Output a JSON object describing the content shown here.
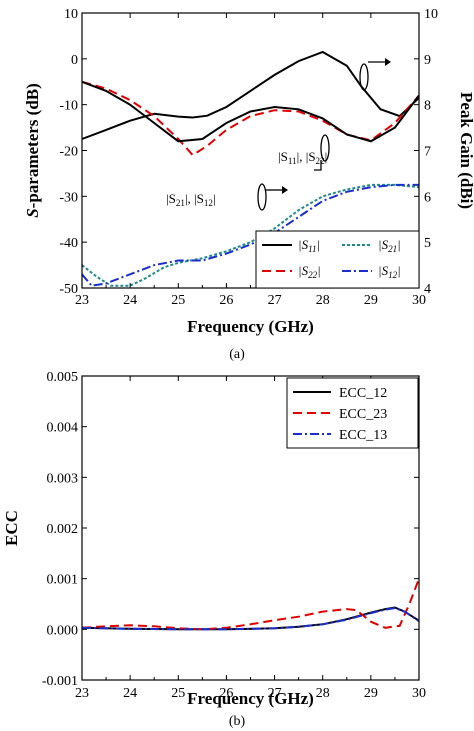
{
  "chart_data": [
    {
      "type": "line",
      "panel_label": "(a)",
      "xlabel": "Frequency (GHz)",
      "ylabel": "S-parameters (dB)",
      "ylabel_parts": [
        "S",
        "-parameters (dB)"
      ],
      "y2label": "Peak Gain (dBi)",
      "xlim": [
        23,
        30
      ],
      "ylim": [
        -50,
        10
      ],
      "y2lim": [
        4,
        10
      ],
      "x_ticks": [
        "23",
        "24",
        "25",
        "26",
        "27",
        "28",
        "29",
        "30"
      ],
      "y_ticks": [
        "-50",
        "-40",
        "-30",
        "-20",
        "-10",
        "0",
        "10"
      ],
      "y2_ticks": [
        "4",
        "5",
        "6",
        "7",
        "8",
        "9",
        "10"
      ],
      "grid": false,
      "legend_position": "bottom-right",
      "annotations": {
        "s11_s22": {
          "base": "|S",
          "sub1": "11",
          "mid": "|, |S",
          "sub2": "22",
          "end": "|"
        },
        "s21_s12": {
          "base": "|S",
          "sub1": "21",
          "mid": "|, |S",
          "sub2": "12",
          "end": "|"
        }
      },
      "series": [
        {
          "name": "|S11|",
          "legend_base": "|S",
          "legend_sub": "11",
          "legend_end": "|",
          "color": "#000000",
          "dash": "solid",
          "axis": "left",
          "x": [
            23,
            23.5,
            24,
            24.5,
            25,
            25.3,
            25.6,
            26,
            26.5,
            27,
            27.5,
            28,
            28.5,
            28.8,
            29.2,
            29.6,
            30
          ],
          "y": [
            -17.5,
            -15.5,
            -13.5,
            -12,
            -12.6,
            -12.8,
            -12.4,
            -10.5,
            -7,
            -3.5,
            -0.5,
            1.5,
            -1.5,
            -6,
            -11,
            -12.5,
            -8.5
          ]
        },
        {
          "name": "|S22|",
          "legend_base": "|S",
          "legend_sub": "22",
          "legend_end": "|",
          "color": "#e00000",
          "dash": "dashed",
          "axis": "left",
          "x": [
            23,
            23.5,
            24,
            24.5,
            25,
            25.3,
            25.6,
            26,
            26.5,
            27,
            27.5,
            28,
            28.5,
            29,
            29.5,
            30
          ],
          "y": [
            -5,
            -6.5,
            -9,
            -12.5,
            -17.5,
            -21,
            -19,
            -15.5,
            -12.5,
            -11.2,
            -11.5,
            -13.5,
            -16.5,
            -17.8,
            -14,
            -8
          ]
        },
        {
          "name": "|S21|",
          "legend_base": "|S",
          "legend_sub": "21",
          "legend_end": "|",
          "color": "#1f8a8a",
          "dash": "dotted",
          "axis": "left",
          "x": [
            23,
            23.3,
            23.6,
            24,
            24.3,
            24.7,
            25,
            25.5,
            26,
            26.5,
            27,
            27.5,
            28,
            28.5,
            29,
            29.5,
            30
          ],
          "y": [
            -45,
            -47.5,
            -49.5,
            -49.5,
            -48,
            -45.5,
            -44.5,
            -43.5,
            -42,
            -40,
            -37,
            -33,
            -30,
            -28.5,
            -27.5,
            -27.5,
            -28
          ]
        },
        {
          "name": "|S12|",
          "legend_base": "|S",
          "legend_sub": "12",
          "legend_end": "|",
          "color": "#1a2ecc",
          "dash": "dashdot",
          "axis": "left",
          "x": [
            23,
            23.2,
            23.5,
            24,
            24.5,
            25,
            25.5,
            26,
            26.5,
            27,
            27.5,
            28,
            28.5,
            29,
            29.5,
            30
          ],
          "y": [
            -47,
            -49.5,
            -49,
            -47,
            -45,
            -44,
            -44,
            -42.5,
            -40.5,
            -38,
            -34.5,
            -31,
            -29,
            -28,
            -27.5,
            -27.5
          ]
        },
        {
          "name": "Peak Gain",
          "color": "#000000",
          "dash": "solid",
          "axis": "right",
          "in_legend": false,
          "x": [
            23,
            23.5,
            24,
            24.5,
            25,
            25.5,
            26,
            26.5,
            27,
            27.5,
            28,
            28.5,
            29,
            29.5,
            30
          ],
          "y": [
            8.5,
            8.3,
            8.0,
            7.6,
            7.2,
            7.25,
            7.6,
            7.85,
            7.95,
            7.9,
            7.7,
            7.35,
            7.2,
            7.5,
            8.2
          ]
        }
      ]
    },
    {
      "type": "line",
      "panel_label": "(b)",
      "xlabel": "Frequency (GHz)",
      "ylabel": "ECC",
      "xlim": [
        23,
        30
      ],
      "ylim": [
        -0.001,
        0.005
      ],
      "x_ticks": [
        "23",
        "24",
        "25",
        "26",
        "27",
        "28",
        "29",
        "30"
      ],
      "y_ticks": [
        "-0.001",
        "0.000",
        "0.001",
        "0.002",
        "0.003",
        "0.004",
        "0.005"
      ],
      "grid": false,
      "legend_position": "top-right",
      "series": [
        {
          "name": "ECC_12",
          "color": "#000000",
          "dash": "solid",
          "x": [
            23,
            24,
            25,
            26,
            27,
            27.5,
            28,
            28.5,
            29,
            29.3,
            29.5,
            29.7,
            30
          ],
          "y": [
            3e-05,
            1e-05,
            0.0,
            0.0,
            2e-05,
            5e-05,
            0.0001,
            0.0002,
            0.00033,
            0.0004,
            0.00043,
            0.00035,
            0.00017
          ]
        },
        {
          "name": "ECC_23",
          "color": "#e00000",
          "dash": "dashed",
          "x": [
            23,
            23.5,
            24,
            24.5,
            25,
            25.5,
            26,
            26.5,
            27,
            27.5,
            28,
            28.5,
            28.7,
            29,
            29.3,
            29.6,
            29.8,
            30
          ],
          "y": [
            3e-05,
            6e-05,
            8e-05,
            6e-05,
            2e-05,
            0.0,
            3e-05,
            0.0001,
            0.00018,
            0.00025,
            0.00035,
            0.0004,
            0.00038,
            0.00015,
            3e-05,
            7e-05,
            0.0005,
            0.001
          ]
        },
        {
          "name": "ECC_13",
          "color": "#1a2ecc",
          "dash": "dashdot",
          "x": [
            23,
            24,
            25,
            26,
            27,
            27.5,
            28,
            28.5,
            29,
            29.3,
            29.5,
            29.7,
            30
          ],
          "y": [
            3e-05,
            1e-05,
            0.0,
            0.0,
            2e-05,
            5e-05,
            0.0001,
            0.00019,
            0.00032,
            0.00039,
            0.00042,
            0.00035,
            0.00016
          ]
        }
      ]
    }
  ]
}
